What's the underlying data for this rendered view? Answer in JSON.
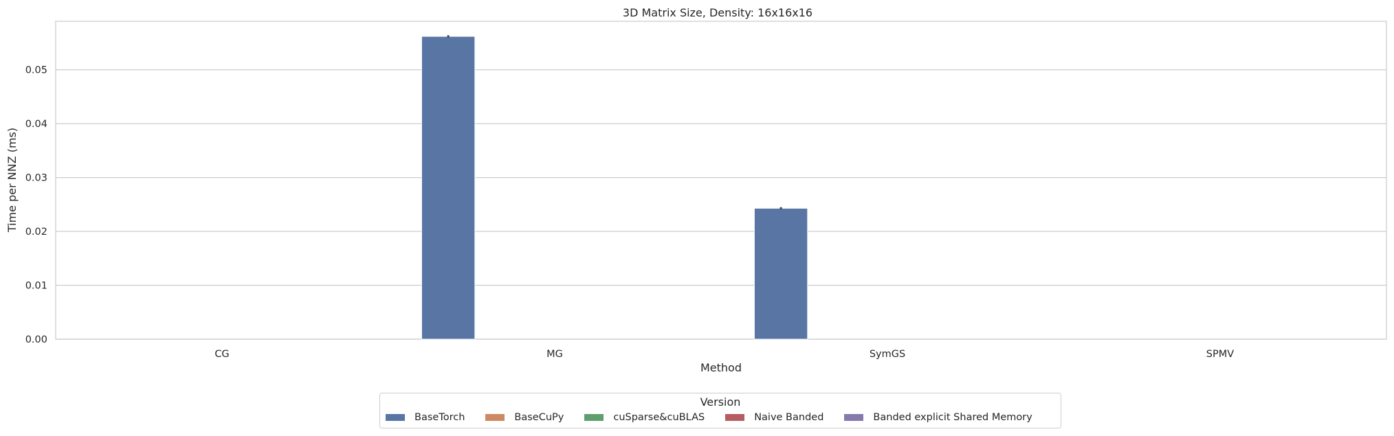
{
  "chart_data": {
    "type": "bar",
    "title": "3D Matrix Size, Density: 16x16x16",
    "xlabel": "Method",
    "ylabel": "Time per NNZ (ms)",
    "categories": [
      "CG",
      "MG",
      "SymGS",
      "SPMV"
    ],
    "ylim": [
      0,
      0.059
    ],
    "yticks": [
      0.0,
      0.01,
      0.02,
      0.03,
      0.04,
      0.05
    ],
    "ytick_labels": [
      "0.00",
      "0.01",
      "0.02",
      "0.03",
      "0.04",
      "0.05"
    ],
    "grid": true,
    "legend_position": "bottom-center",
    "legend_title": "Version",
    "series": [
      {
        "name": "BaseTorch",
        "color": "#5875a4",
        "values": [
          null,
          0.0562,
          0.0243,
          null
        ],
        "errors": [
          null,
          0.0002,
          0.0002,
          null
        ]
      },
      {
        "name": "BaseCuPy",
        "color": "#cc8963",
        "values": [
          null,
          null,
          null,
          null
        ]
      },
      {
        "name": "cuSparse&cuBLAS",
        "color": "#5f9e6e",
        "values": [
          null,
          null,
          null,
          null
        ]
      },
      {
        "name": "Naive Banded",
        "color": "#b55d60",
        "values": [
          null,
          null,
          null,
          null
        ]
      },
      {
        "name": "Banded explicit Shared Memory",
        "color": "#857aab",
        "values": [
          null,
          null,
          null,
          null
        ]
      }
    ]
  }
}
